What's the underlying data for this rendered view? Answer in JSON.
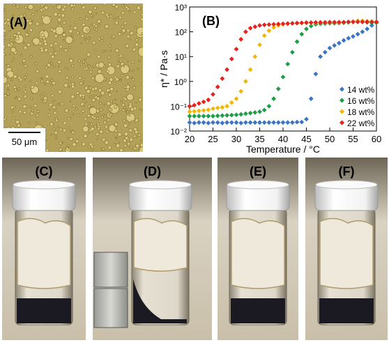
{
  "panels": {
    "a": {
      "label": "(A)",
      "scale_bar": "50 μm"
    },
    "c": {
      "label": "(C)"
    },
    "d": {
      "label": "(D)"
    },
    "e": {
      "label": "(E)"
    },
    "f": {
      "label": "(F)"
    }
  },
  "chart_data": {
    "type": "scatter",
    "label": "(B)",
    "xlabel": "Temperature / °C",
    "ylabel": "η* / Pa·s",
    "log_y": true,
    "legend": "lower right",
    "xlim": [
      20,
      60
    ],
    "xticks": [
      20,
      25,
      30,
      35,
      40,
      45,
      50,
      55,
      60
    ],
    "ylim": [
      0.01,
      1000
    ],
    "yticks": [
      {
        "value": 0.01,
        "label": "10⁻²"
      },
      {
        "value": 0.1,
        "label": "10⁻¹"
      },
      {
        "value": 1,
        "label": "10⁰"
      },
      {
        "value": 10,
        "label": "10¹"
      },
      {
        "value": 100,
        "label": "10²"
      },
      {
        "value": 1000,
        "label": "10³"
      }
    ],
    "x": [
      20,
      21,
      22,
      23,
      24,
      25,
      26,
      27,
      28,
      29,
      30,
      31,
      32,
      33,
      34,
      35,
      36,
      37,
      38,
      39,
      40,
      41,
      42,
      43,
      44,
      45,
      46,
      47,
      48,
      49,
      50,
      51,
      52,
      53,
      54,
      55,
      56,
      57,
      58,
      59,
      60
    ],
    "series": [
      {
        "name": "14 wt%",
        "color": "#3a76c3",
        "values": [
          0.022,
          0.021,
          0.022,
          0.022,
          0.021,
          0.022,
          0.022,
          0.021,
          0.022,
          0.022,
          0.022,
          0.021,
          0.022,
          0.022,
          0.022,
          0.022,
          0.022,
          0.022,
          0.022,
          0.022,
          0.022,
          0.022,
          0.022,
          0.023,
          0.023,
          0.03,
          0.2,
          2,
          10,
          15,
          22,
          28,
          35,
          45,
          55,
          65,
          80,
          100,
          130,
          180,
          250
        ]
      },
      {
        "name": "16 wt%",
        "color": "#1f9e4a",
        "values": [
          0.04,
          0.04,
          0.04,
          0.04,
          0.04,
          0.04,
          0.041,
          0.042,
          0.043,
          0.044,
          0.045,
          0.047,
          0.05,
          0.053,
          0.056,
          0.06,
          0.07,
          0.1,
          0.2,
          0.5,
          1.5,
          5,
          15,
          40,
          80,
          130,
          170,
          200,
          210,
          215,
          220,
          220,
          225,
          230,
          240,
          250,
          250,
          250,
          240,
          230,
          230
        ]
      },
      {
        "name": "18 wt%",
        "color": "#f2b705",
        "values": [
          0.06,
          0.062,
          0.065,
          0.068,
          0.072,
          0.08,
          0.085,
          0.09,
          0.1,
          0.14,
          0.2,
          0.4,
          1,
          3,
          10,
          30,
          70,
          110,
          150,
          180,
          200,
          210,
          215,
          220,
          225,
          225,
          230,
          230,
          235,
          235,
          240,
          240,
          240,
          245,
          250,
          260,
          280,
          280,
          270,
          260,
          250
        ]
      },
      {
        "name": "22 wt%",
        "color": "#e4231e",
        "values": [
          0.1,
          0.11,
          0.13,
          0.15,
          0.18,
          0.3,
          0.6,
          1.3,
          3,
          8,
          20,
          50,
          100,
          140,
          160,
          180,
          190,
          195,
          200,
          205,
          210,
          215,
          220,
          225,
          230,
          235,
          235,
          240,
          240,
          240,
          245,
          245,
          245,
          245,
          250,
          250,
          250,
          250,
          250,
          250,
          250
        ]
      }
    ]
  }
}
